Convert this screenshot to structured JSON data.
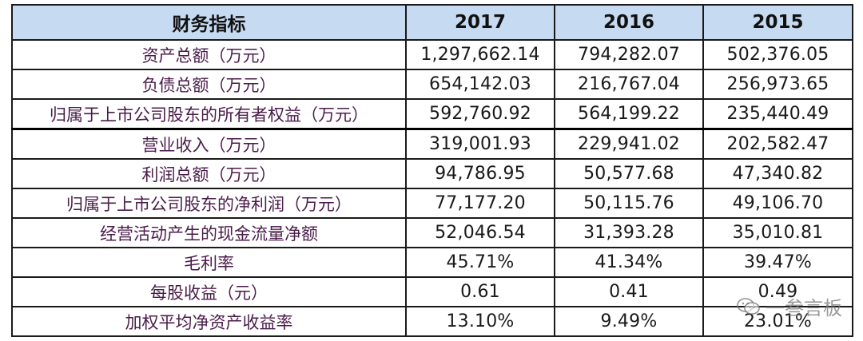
{
  "table": {
    "headers": [
      "财务指标",
      "2017",
      "2016",
      "2015"
    ],
    "rows": [
      {
        "label": "资产总额（万元）",
        "v2017": "1,297,662.14",
        "v2016": "794,282.07",
        "v2015": "502,376.05"
      },
      {
        "label": "负债总额（万元）",
        "v2017": "654,142.03",
        "v2016": "216,767.04",
        "v2015": "256,973.65"
      },
      {
        "label": "归属于上市公司股东的所有者权益（万元）",
        "v2017": "592,760.92",
        "v2016": "564,199.22",
        "v2015": "235,440.49"
      },
      {
        "label": "营业收入（万元）",
        "v2017": "319,001.93",
        "v2016": "229,941.02",
        "v2015": "202,582.47"
      },
      {
        "label": "利润总额（万元）",
        "v2017": "94,786.95",
        "v2016": "50,577.68",
        "v2015": "47,340.82"
      },
      {
        "label": "归属于上市公司股东的净利润（万元）",
        "v2017": "77,177.20",
        "v2016": "50,115.76",
        "v2015": "49,106.70"
      },
      {
        "label": "经营活动产生的现金流量净额",
        "v2017": "52,046.54",
        "v2016": "31,393.28",
        "v2015": "35,010.81"
      },
      {
        "label": "毛利率",
        "v2017": "45.71%",
        "v2016": "41.34%",
        "v2015": "39.47%"
      },
      {
        "label": "每股收益（元）",
        "v2017": "0.61",
        "v2016": "0.41",
        "v2015": "0.49"
      },
      {
        "label": "加权平均净资产收益率",
        "v2017": "13.10%",
        "v2016": "9.49%",
        "v2015": "23.01%"
      }
    ]
  },
  "watermark": {
    "text": "一叁言板",
    "icon": "wechat-icon"
  }
}
